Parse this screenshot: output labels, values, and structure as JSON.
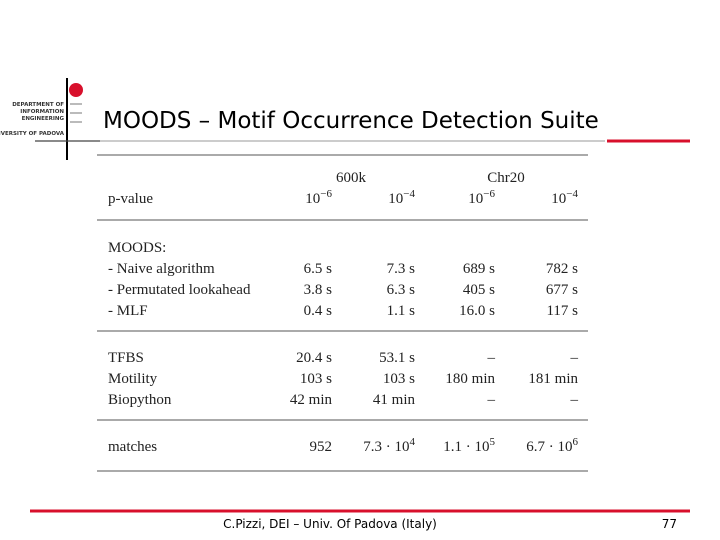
{
  "header": {
    "logo": [
      "DEPARTMENT OF",
      "INFORMATION",
      "ENGINEERING"
    ],
    "logo_sub": "UNIVERSITY OF PADOVA",
    "title": "MOODS – Motif Occurrence Detection Suite"
  },
  "table": {
    "groups": [
      "600k",
      "Chr20"
    ],
    "header": [
      "p-value",
      {
        "base": "10",
        "exp": "−6"
      },
      {
        "base": "10",
        "exp": "−4"
      },
      {
        "base": "10",
        "exp": "−6"
      },
      {
        "base": "10",
        "exp": "−4"
      }
    ],
    "sections": [
      {
        "title": "MOODS:",
        "rows": [
          [
            "- Naive algorithm",
            "6.5 s",
            "7.3 s",
            "689 s",
            "782 s"
          ],
          [
            "- Permutated lookahead",
            "3.8 s",
            "6.3 s",
            "405 s",
            "677 s"
          ],
          [
            "- MLF",
            "0.4 s",
            "1.1 s",
            "16.0 s",
            "117 s"
          ]
        ]
      },
      {
        "rows": [
          [
            "TFBS",
            "20.4 s",
            "53.1 s",
            "–",
            "–"
          ],
          [
            "Motility",
            "103 s",
            "103 s",
            "180 min",
            "181 min"
          ],
          [
            "Biopython",
            "42 min",
            "41 min",
            "–",
            "–"
          ]
        ]
      },
      {
        "rows": [
          [
            "matches",
            "952",
            {
              "base": "7.3 · 10",
              "exp": "4"
            },
            {
              "base": "1.1 · 10",
              "exp": "5"
            },
            {
              "base": "6.7 · 10",
              "exp": "6"
            }
          ]
        ]
      }
    ]
  },
  "footer": {
    "text": "C.Pizzi, DEI – Univ. Of Padova (Italy)",
    "page": "77"
  }
}
